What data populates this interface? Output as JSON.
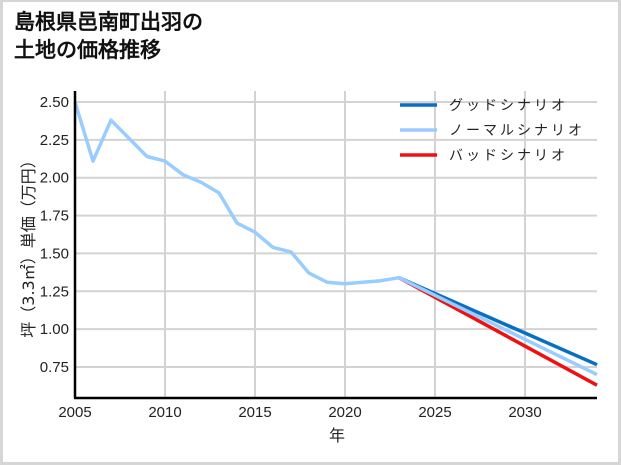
{
  "title": {
    "line1": "島根県邑南町出羽の",
    "line2": "土地の価格推移"
  },
  "colors": {
    "good": "#0a6fc2",
    "normal": "#99ccff",
    "bad": "#ee1111",
    "grid": "#d3d3d3",
    "axis": "#000000"
  },
  "chart_data": {
    "type": "line",
    "title": "島根県邑南町出羽の土地の価格推移",
    "xlabel": "年",
    "ylabel": "坪（3.3㎡）単価（万円）",
    "xlim": [
      2005,
      2034
    ],
    "ylim": [
      0.55,
      2.57
    ],
    "grid": true,
    "legend_position": "upper right",
    "x_ticks": [
      2005,
      2010,
      2015,
      2020,
      2025,
      2030
    ],
    "x_tick_labels": [
      "2005",
      "2010",
      "2015",
      "2020",
      "2025",
      "2030"
    ],
    "y_ticks": [
      2.5,
      2.25,
      2.0,
      1.75,
      1.5,
      1.25,
      1.0,
      0.75
    ],
    "y_tick_labels": [
      "2.50",
      "2.25",
      "2.00",
      "1.75",
      "1.50",
      "1.25",
      "1.00",
      "0.75"
    ],
    "series": [
      {
        "name": "グッドシナリオ",
        "color": "#0a6fc2",
        "x": [
          2023,
          2034
        ],
        "values": [
          1.34,
          0.765
        ]
      },
      {
        "name": "ノーマルシナリオ",
        "color": "#99ccff",
        "x": [
          2005,
          2006,
          2007,
          2008,
          2009,
          2010,
          2011,
          2012,
          2013,
          2014,
          2015,
          2016,
          2017,
          2018,
          2019,
          2020,
          2021,
          2022,
          2023,
          2034
        ],
        "values": [
          2.5,
          2.11,
          2.38,
          2.26,
          2.14,
          2.11,
          2.02,
          1.97,
          1.9,
          1.7,
          1.64,
          1.54,
          1.51,
          1.37,
          1.31,
          1.3,
          1.31,
          1.32,
          1.34,
          0.7
        ]
      },
      {
        "name": "バッドシナリオ",
        "color": "#ee1111",
        "x": [
          2023,
          2034
        ],
        "values": [
          1.34,
          0.63
        ]
      }
    ]
  }
}
